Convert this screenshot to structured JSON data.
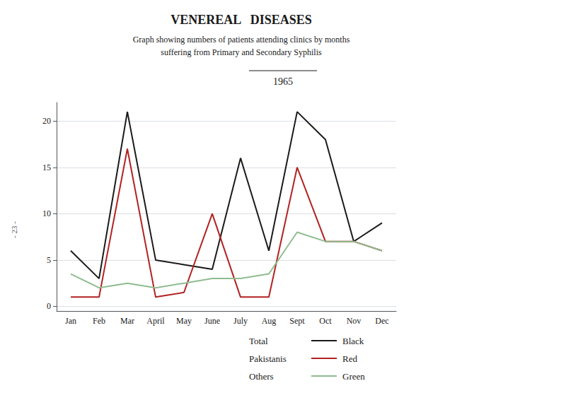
{
  "chart_data": {
    "type": "line",
    "title": "VENEREAL   DISEASES",
    "subtitle": [
      "Graph showing numbers of patients attending clinics by months",
      "suffering from Primary and Secondary Syphilis"
    ],
    "annotations": [
      "1965",
      "- 23 -"
    ],
    "categories": [
      "Jan",
      "Feb",
      "Mar",
      "April",
      "May",
      "June",
      "July",
      "Aug",
      "Sept",
      "Oct",
      "Nov",
      "Dec"
    ],
    "series": [
      {
        "name": "Total",
        "color": "#1a1a1a",
        "legend_text": "Black",
        "values": [
          6,
          3,
          21,
          5,
          4.5,
          4,
          16,
          6,
          21,
          18,
          7,
          9
        ]
      },
      {
        "name": "Pakistanis",
        "color": "#b22222",
        "legend_text": "Red",
        "values": [
          1,
          1,
          17,
          1,
          1.5,
          10,
          1,
          1,
          15,
          7,
          7,
          6
        ]
      },
      {
        "name": "Others",
        "color": "#8fbc8f",
        "legend_text": "Green",
        "values": [
          3.5,
          2,
          2.5,
          2,
          2.5,
          3,
          3,
          3.5,
          8,
          7,
          7,
          6
        ]
      }
    ],
    "ylim": [
      -0.5,
      22
    ],
    "yticks": [
      0,
      5,
      10,
      15,
      20
    ],
    "grid": true,
    "legend": "bottom"
  }
}
